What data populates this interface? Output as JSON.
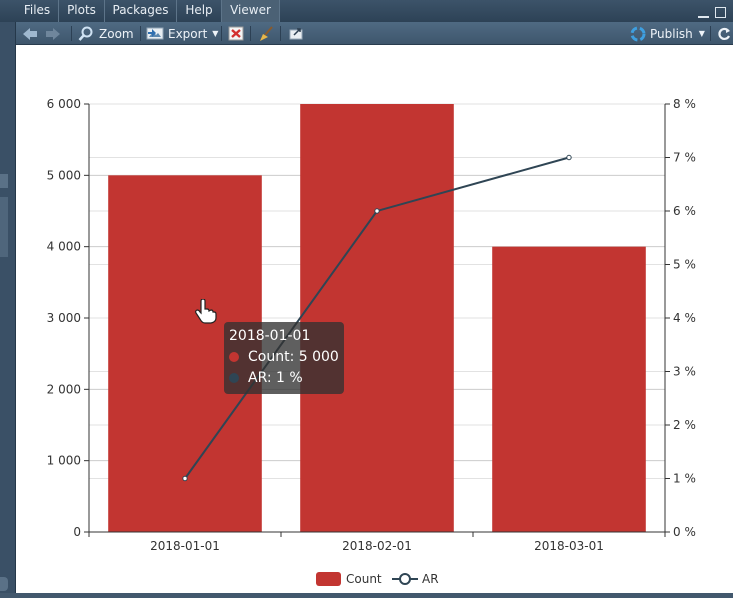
{
  "tabs": [
    {
      "label": "Files",
      "active": false
    },
    {
      "label": "Plots",
      "active": false
    },
    {
      "label": "Packages",
      "active": false
    },
    {
      "label": "Help",
      "active": false
    },
    {
      "label": "Viewer",
      "active": true
    }
  ],
  "toolbar": {
    "back_icon": "arrow-left-icon",
    "forward_icon": "arrow-right-icon",
    "zoom_label": "Zoom",
    "export_label": "Export",
    "remove_icon": "remove-viewer-icon",
    "clear_icon": "broom-icon",
    "popout_icon": "show-in-window-icon",
    "publish_label": "Publish",
    "refresh_icon": "refresh-icon"
  },
  "colors": {
    "bar": "#c23531",
    "line": "#2f4554",
    "tooltip_bg": "#323232"
  },
  "chart_data": {
    "type": "bar",
    "categories": [
      "2018-01-01",
      "2018-02-01",
      "2018-03-01"
    ],
    "series": [
      {
        "name": "Count",
        "type": "bar",
        "axis": "left",
        "values": [
          5000,
          6000,
          4000
        ]
      },
      {
        "name": "AR",
        "type": "line",
        "axis": "right",
        "values": [
          1,
          6,
          7
        ]
      }
    ],
    "y_left": {
      "min": 0,
      "max": 6000,
      "ticks": [
        "0",
        "1 000",
        "2 000",
        "3 000",
        "4 000",
        "5 000",
        "6 000"
      ]
    },
    "y_right": {
      "min": 0,
      "max": 8,
      "ticks": [
        "0 %",
        "1 %",
        "2 %",
        "3 %",
        "4 %",
        "5 %",
        "6 %",
        "7 %",
        "8 %"
      ]
    },
    "grid": true,
    "legend_position": "bottom-center",
    "tooltip": {
      "title": "2018-01-01",
      "count_text": "Count: 5 000",
      "ar_text": "AR: 1 %"
    }
  }
}
